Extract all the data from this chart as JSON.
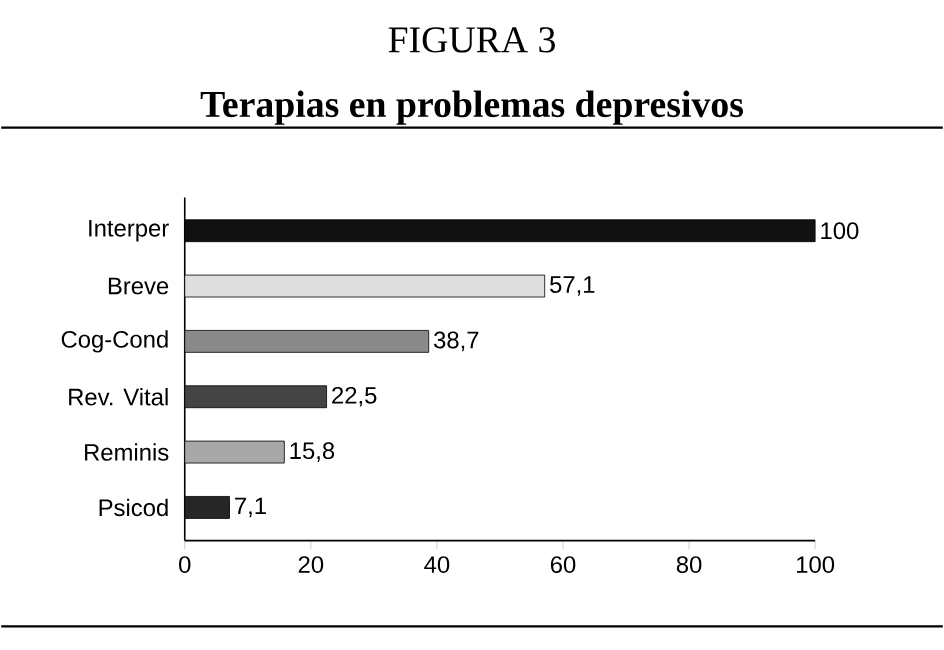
{
  "chart_data": {
    "type": "bar",
    "orientation": "horizontal",
    "title": "FIGURA 3",
    "subtitle": "Terapias en problemas depresivos",
    "categories": [
      "Interper",
      "Breve",
      "Cog-Cond",
      "Rev. Vital",
      "Reminis",
      "Psicod"
    ],
    "values": [
      100,
      57.1,
      38.7,
      22.5,
      15.8,
      7.1
    ],
    "value_labels": [
      "100",
      "57,1",
      "38,7",
      "22,5",
      "15,8",
      "7,1"
    ],
    "colors": [
      "#111111",
      "#dedede",
      "#8a8a8a",
      "#444444",
      "#a8a8a8",
      "#262626"
    ],
    "xlim": [
      0,
      100
    ],
    "xticks": [
      0,
      20,
      40,
      60,
      80,
      100
    ],
    "grid": false
  }
}
